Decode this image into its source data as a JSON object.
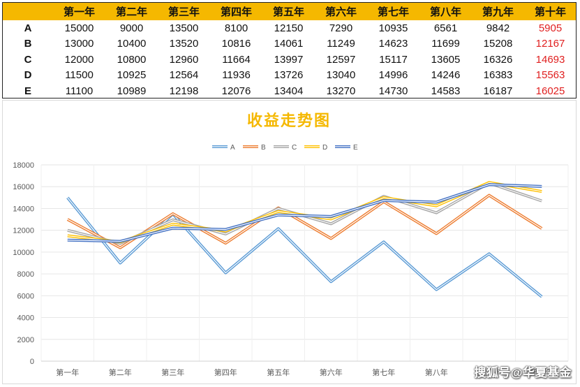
{
  "table": {
    "header": [
      "第一年",
      "第二年",
      "第三年",
      "第四年",
      "第五年",
      "第六年",
      "第七年",
      "第八年",
      "第九年",
      "第十年"
    ],
    "rows": [
      {
        "label": "A",
        "values": [
          "15000",
          "9000",
          "13500",
          "8100",
          "12150",
          "7290",
          "10935",
          "6561",
          "9842",
          "5905"
        ]
      },
      {
        "label": "B",
        "values": [
          "13000",
          "10400",
          "13520",
          "10816",
          "14061",
          "11249",
          "14623",
          "11699",
          "15208",
          "12167"
        ]
      },
      {
        "label": "C",
        "values": [
          "12000",
          "10800",
          "12960",
          "11664",
          "13997",
          "12597",
          "15117",
          "13605",
          "16326",
          "14693"
        ]
      },
      {
        "label": "D",
        "values": [
          "11500",
          "10925",
          "12564",
          "11936",
          "13726",
          "13040",
          "14996",
          "14246",
          "16383",
          "15563"
        ]
      },
      {
        "label": "E",
        "values": [
          "11100",
          "10989",
          "12198",
          "12076",
          "13404",
          "13270",
          "14730",
          "14583",
          "16187",
          "16025"
        ]
      }
    ],
    "header_bg": "#f5b800",
    "highlight_color": "#e02020"
  },
  "chart_data": {
    "type": "line",
    "title": "收益走势图",
    "title_color": "#f5b800",
    "categories": [
      "第一年",
      "第二年",
      "第三年",
      "第四年",
      "第五年",
      "第六年",
      "第七年",
      "第八年",
      "第九年",
      "第十年"
    ],
    "series": [
      {
        "name": "A",
        "color": "#5b9bd5",
        "values": [
          15000,
          9000,
          13500,
          8100,
          12150,
          7290,
          10935,
          6561,
          9842,
          5905
        ]
      },
      {
        "name": "B",
        "color": "#ed7d31",
        "values": [
          13000,
          10400,
          13520,
          10816,
          14061,
          11249,
          14623,
          11699,
          15208,
          12167
        ]
      },
      {
        "name": "C",
        "color": "#a5a5a5",
        "values": [
          12000,
          10800,
          12960,
          11664,
          13997,
          12597,
          15117,
          13605,
          16326,
          14693
        ]
      },
      {
        "name": "D",
        "color": "#ffc000",
        "values": [
          11500,
          10925,
          12564,
          11936,
          13726,
          13040,
          14996,
          14246,
          16383,
          15563
        ]
      },
      {
        "name": "E",
        "color": "#4472c4",
        "values": [
          11100,
          10989,
          12198,
          12076,
          13404,
          13270,
          14730,
          14583,
          16187,
          16025
        ]
      }
    ],
    "ylim": [
      0,
      18000
    ],
    "yticks": [
      0,
      2000,
      4000,
      6000,
      8000,
      10000,
      12000,
      14000,
      16000,
      18000
    ],
    "grid": true,
    "legend": "top"
  },
  "watermark": "搜狐号@华夏基金"
}
